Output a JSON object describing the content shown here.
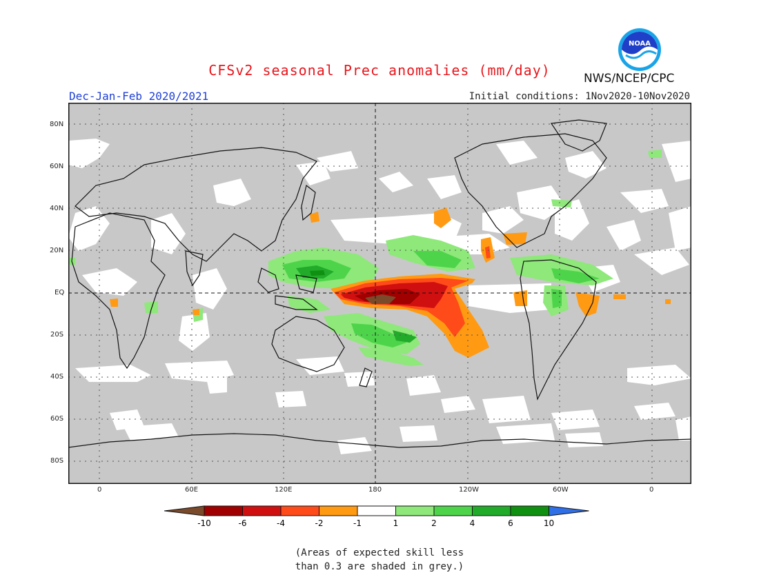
{
  "header": {
    "title": "CFSv2 seasonal Prec anomalies (mm/day)",
    "season": "Dec-Jan-Feb 2020/2021",
    "initial_conditions": "Initial conditions: 1Nov2020-10Nov2020",
    "agency": "NWS/NCEP/CPC",
    "logo_text": "NOAA"
  },
  "map": {
    "lat_labels": [
      "80N",
      "60N",
      "40N",
      "20N",
      "EQ",
      "20S",
      "40S",
      "60S",
      "80S"
    ],
    "lon_labels": [
      "0",
      "60E",
      "120E",
      "180",
      "120W",
      "60W",
      "0"
    ]
  },
  "legend": {
    "labels": [
      "-10",
      "-6",
      "-4",
      "-2",
      "-1",
      "1",
      "2",
      "4",
      "6",
      "10"
    ],
    "colors": [
      "#7a4a2a",
      "#a00000",
      "#d01010",
      "#ff4a1a",
      "#ff9a12",
      "#ffffff",
      "#8ee87a",
      "#4ed44a",
      "#22aa2a",
      "#109010",
      "#2f6fe8"
    ]
  },
  "note": {
    "line1": "(Areas of expected skill less",
    "line2": "than 0.3 are shaded in grey.)"
  }
}
